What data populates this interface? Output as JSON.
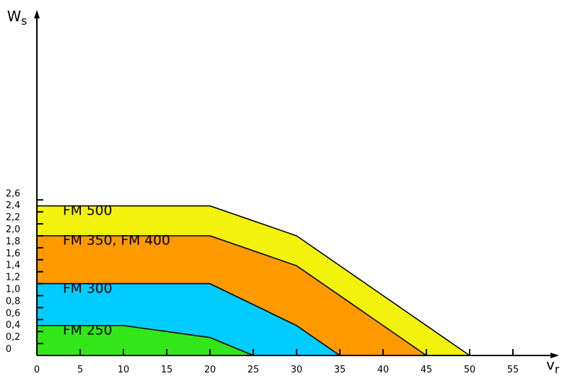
{
  "chart_data": {
    "type": "area",
    "xlabel": "v",
    "xlabel_sub": "r",
    "ylabel": "W",
    "ylabel_sub": "s",
    "xlim": [
      0,
      60
    ],
    "ylim": [
      0,
      2.6
    ],
    "x_ticks": [
      "0",
      "5",
      "10",
      "15",
      "20",
      "25",
      "30",
      "35",
      "40",
      "45",
      "50",
      "55"
    ],
    "y_ticks": [
      "0",
      "0,2",
      "0,4",
      "0,6",
      "0,8",
      "1,0",
      "1,2",
      "1,4",
      "1,6",
      "1,8",
      "2,0",
      "2,2",
      "2,4",
      "2,6"
    ],
    "grid": false,
    "series": [
      {
        "name": "FM 500",
        "color": "#f2f20d",
        "label_at": [
          3,
          2.35
        ],
        "points": [
          [
            0,
            2.5
          ],
          [
            20,
            2.5
          ],
          [
            30,
            2.0
          ],
          [
            50,
            0
          ]
        ]
      },
      {
        "name": "FM 350, FM 400",
        "color": "#ff9900",
        "label_at": [
          3,
          1.85
        ],
        "points": [
          [
            0,
            2.0
          ],
          [
            20,
            2.0
          ],
          [
            30,
            1.5
          ],
          [
            45,
            0
          ]
        ]
      },
      {
        "name": "FM 300",
        "color": "#00ccff",
        "label_at": [
          3,
          1.05
        ],
        "points": [
          [
            0,
            1.2
          ],
          [
            20,
            1.2
          ],
          [
            30,
            0.5
          ],
          [
            35,
            0
          ]
        ]
      },
      {
        "name": "FM 250",
        "color": "#33e61a",
        "label_at": [
          3,
          0.35
        ],
        "points": [
          [
            0,
            0.5
          ],
          [
            10,
            0.5
          ],
          [
            20,
            0.3
          ],
          [
            25,
            0
          ]
        ]
      }
    ]
  }
}
